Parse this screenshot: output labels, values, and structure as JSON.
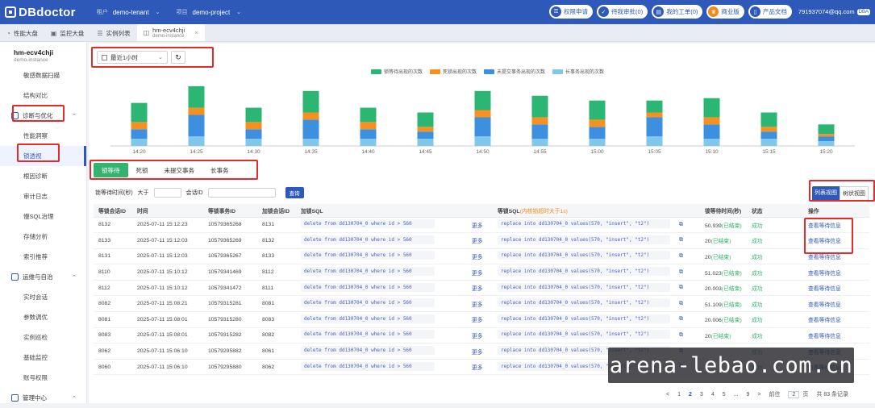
{
  "topbar": {
    "logo": "DBdoctor",
    "tenant_key": "租户",
    "tenant_value": "demo-tenant",
    "project_key": "项目",
    "project_value": "demo-project",
    "buttons": [
      {
        "label": "权限申请",
        "icon": "key-icon"
      },
      {
        "label": "待我审批(0)",
        "icon": "approval-icon"
      },
      {
        "label": "我的工单(0)",
        "icon": "ticket-icon"
      },
      {
        "label": "商业版",
        "icon": "crown-icon"
      },
      {
        "label": "产品文档",
        "icon": "doc-icon"
      }
    ],
    "user": "791937074@qq.com",
    "user_badge": "DBA"
  },
  "tabs": [
    {
      "label": "性能大盘",
      "icon": "dashboard-icon"
    },
    {
      "label": "监控大盘",
      "icon": "monitor-icon"
    },
    {
      "label": "实例列表",
      "icon": "list-icon"
    },
    {
      "label": "hm-ecv4chji",
      "sub": "demo-instance",
      "icon": "database-icon"
    }
  ],
  "sidebar": {
    "instance_name": "hm-ecv4chji",
    "instance_sub": "demo-instance",
    "items": [
      {
        "type": "item",
        "label": "敏感数据扫描"
      },
      {
        "type": "item",
        "label": "结构对比"
      },
      {
        "type": "group",
        "label": "诊断与优化"
      },
      {
        "type": "item",
        "label": "性能洞察"
      },
      {
        "type": "item",
        "label": "锁透视",
        "active": true
      },
      {
        "type": "item",
        "label": "根因诊断"
      },
      {
        "type": "item",
        "label": "审计日志"
      },
      {
        "type": "item",
        "label": "慢SQL治理"
      },
      {
        "type": "item",
        "label": "存储分析"
      },
      {
        "type": "item",
        "label": "索引推荐"
      },
      {
        "type": "group",
        "label": "运维与自治"
      },
      {
        "type": "item",
        "label": "实时会话"
      },
      {
        "type": "item",
        "label": "参数调优"
      },
      {
        "type": "item",
        "label": "实例巡检"
      },
      {
        "type": "item",
        "label": "基础监控"
      },
      {
        "type": "item",
        "label": "账号权限"
      },
      {
        "type": "group",
        "label": "管理中心"
      }
    ]
  },
  "controls": {
    "time_range": "最近1小时"
  },
  "chart_data": {
    "type": "bar",
    "stacked": true,
    "categories": [
      "14:20",
      "14:25",
      "14:30",
      "14:35",
      "14:40",
      "14:45",
      "14:50",
      "14:55",
      "15:00",
      "15:05",
      "15:10",
      "15:15",
      "15:20"
    ],
    "series": [
      {
        "name": "长事务出现的次数",
        "color": "#7fc8ec",
        "values": [
          3,
          4,
          3,
          3,
          3,
          3,
          4,
          3,
          3,
          4,
          3,
          3,
          2
        ]
      },
      {
        "name": "未提交事务出现的次数",
        "color": "#3d8fe0",
        "values": [
          4,
          9,
          4,
          8,
          4,
          3,
          8,
          6,
          5,
          8,
          6,
          3,
          2
        ]
      },
      {
        "name": "死锁出现的次数",
        "color": "#f6901e",
        "values": [
          3,
          3,
          3,
          3,
          3,
          2,
          3,
          3,
          3,
          2,
          3,
          2,
          1
        ]
      },
      {
        "name": "锁等待出现的次数",
        "color": "#2bb673",
        "values": [
          8,
          9,
          6,
          9,
          6,
          6,
          8,
          9,
          8,
          5,
          8,
          6,
          4
        ]
      }
    ],
    "legend_order": [
      "锁等待出现的次数",
      "死锁出现的次数",
      "未提交事务出现的次数",
      "长事务出现的次数"
    ],
    "ylim": [
      0,
      28
    ],
    "legend_position": "top-center",
    "grid": false
  },
  "type_tabs": [
    "锁等待",
    "死锁",
    "未提交事务",
    "长事务"
  ],
  "filter": {
    "wait_label": "锁等待时间(秒)",
    "gt_label": "大于",
    "session_label": "会话ID",
    "query_btn": "查询"
  },
  "view_switch": {
    "list": "列表视图",
    "tree": "树状视图"
  },
  "table": {
    "headers": [
      "等锁会话ID",
      "时间",
      "等锁事务ID",
      "加锁会话ID",
      "加锁SQL",
      "",
      "等锁SQL",
      "",
      "锁等待时间(秒)",
      "状态",
      "操作"
    ],
    "warn_note": "(内核锁超时大于1s)",
    "more": "更多",
    "status": "成功",
    "action": "查看等待信息",
    "rows": [
      {
        "wait_sid": "8132",
        "time": "2025-07-11 15:12:23",
        "trx": "10579365268",
        "lock_sid": "8131",
        "lock_sql": "delete from dd130704_0 where id > 560",
        "wait_sql": "replace into dd130704_0 values(570, \"insert\", \"t2\")",
        "wait_time": "50.939",
        "done": "(已结束)"
      },
      {
        "wait_sid": "8133",
        "time": "2025-07-11 15:12:03",
        "trx": "10579365269",
        "lock_sid": "8132",
        "lock_sql": "delete from dd130704_0 where id > 560",
        "wait_sql": "replace into dd130704_0 values(570, \"insert\", \"t2\")",
        "wait_time": "20",
        "done": "(已结束)"
      },
      {
        "wait_sid": "8131",
        "time": "2025-07-11 15:12:03",
        "trx": "10579365267",
        "lock_sid": "8133",
        "lock_sql": "delete from dd130704_0 where id > 560",
        "wait_sql": "replace into dd130704_0 values(570, \"insert\", \"t2\")",
        "wait_time": "20",
        "done": "(已结束)"
      },
      {
        "wait_sid": "8110",
        "time": "2025-07-11 15:10:12",
        "trx": "10579341469",
        "lock_sid": "8112",
        "lock_sql": "delete from dd130704_0 where id > 560",
        "wait_sql": "replace into dd130704_0 values(570, \"insert\", \"t2\")",
        "wait_time": "51.023",
        "done": "(已结束)"
      },
      {
        "wait_sid": "8112",
        "time": "2025-07-11 15:10:12",
        "trx": "10579341472",
        "lock_sid": "8111",
        "lock_sql": "delete from dd130704_0 where id > 560",
        "wait_sql": "replace into dd130704_0 values(570, \"insert\", \"t2\")",
        "wait_time": "20.003",
        "done": "(已结束)"
      },
      {
        "wait_sid": "8082",
        "time": "2025-07-11 15:08:21",
        "trx": "10579315281",
        "lock_sid": "8081",
        "lock_sql": "delete from dd130704_0 where id > 560",
        "wait_sql": "replace into dd130704_0 values(570, \"insert\", \"t2\")",
        "wait_time": "51.109",
        "done": "(已结束)"
      },
      {
        "wait_sid": "8081",
        "time": "2025-07-11 15:08:01",
        "trx": "10579315280",
        "lock_sid": "8083",
        "lock_sql": "delete from dd130704_0 where id > 560",
        "wait_sql": "replace into dd130704_0 values(570, \"insert\", \"t2\")",
        "wait_time": "20.006",
        "done": "(已结束)"
      },
      {
        "wait_sid": "8083",
        "time": "2025-07-11 15:08:01",
        "trx": "10579315282",
        "lock_sid": "8082",
        "lock_sql": "delete from dd130704_0 where id > 560",
        "wait_sql": "replace into dd130704_0 values(570, \"insert\", \"t2\")",
        "wait_time": "20",
        "done": "(已结束)"
      },
      {
        "wait_sid": "8062",
        "time": "2025-07-11 15:06:10",
        "trx": "10579295882",
        "lock_sid": "8061",
        "lock_sql": "delete from dd130704_0 where id > 560",
        "wait_sql": "replace into dd130704_0 values(570, \"insert\", \"t2\")",
        "wait_time": "",
        "done": ""
      },
      {
        "wait_sid": "8060",
        "time": "2025-07-11 15:06:10",
        "trx": "10579295880",
        "lock_sid": "8062",
        "lock_sql": "delete from dd130704_0 where id > 560",
        "wait_sql": "replace into dd130704_0 values(570, \"insert\", \"t2\")",
        "wait_time": "",
        "done": ""
      }
    ]
  },
  "pager": {
    "prev": "<",
    "pages": [
      "1",
      "2",
      "3",
      "4",
      "5",
      "...",
      "9"
    ],
    "current": "2",
    "next": ">",
    "goto_label": "前往",
    "goto_value": "2",
    "page_unit": "页",
    "total": "共 83 条记录"
  },
  "watermark": "arena-lebao.com.cn"
}
